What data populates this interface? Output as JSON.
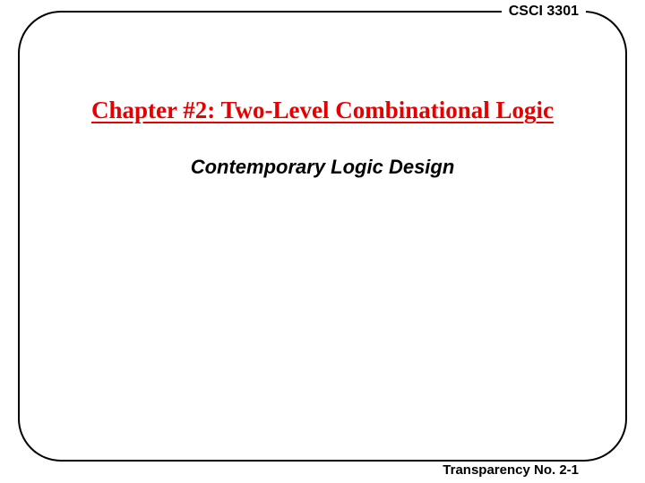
{
  "header": {
    "course_code": "CSCI 3301"
  },
  "slide": {
    "chapter_title": "Chapter #2: Two-Level Combinational Logic",
    "subtitle": "Contemporary Logic Design"
  },
  "footer": {
    "transparency_no": "Transparency No. 2-1"
  },
  "style": {
    "title_color": "#e60000",
    "text_color": "#000000",
    "border_color": "#000000",
    "background_color": "#ffffff",
    "border_radius": 48,
    "border_width": 2.5,
    "title_fontsize": 27,
    "subtitle_fontsize": 22,
    "header_fontsize": 16,
    "footer_fontsize": 15
  }
}
